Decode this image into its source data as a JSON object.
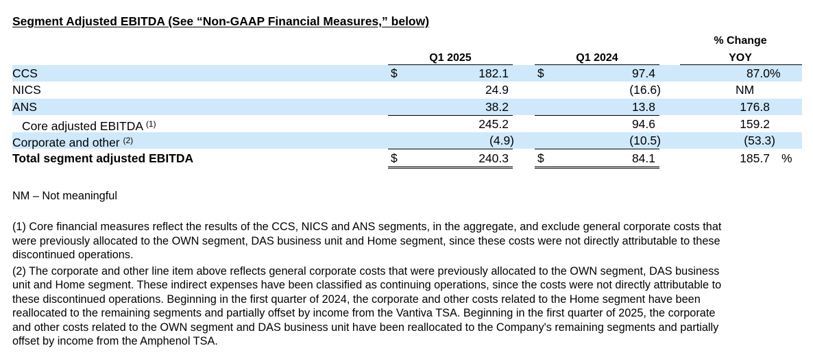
{
  "title": "Segment Adjusted EBITDA (See “Non-GAAP Financial Measures,” below)",
  "headers": {
    "col1": "Q1 2025",
    "col2": "Q1 2024",
    "col3_line1": "% Change",
    "col3_line2": "YOY"
  },
  "rows": [
    {
      "label": "CCS",
      "sup": "",
      "c1_dollar": "$",
      "c1": "182.1",
      "c2_dollar": "$",
      "c2": "97.4",
      "c3": "87.0",
      "c3_pct": "%"
    },
    {
      "label": "NICS",
      "sup": "",
      "c1_dollar": "",
      "c1": "24.9",
      "c2_dollar": "",
      "c2": "(16.6)",
      "c3": "NM",
      "c3_pct": ""
    },
    {
      "label": "ANS",
      "sup": "",
      "c1_dollar": "",
      "c1": "38.2",
      "c2_dollar": "",
      "c2": "13.8",
      "c3": "176.8",
      "c3_pct": ""
    },
    {
      "label": "Core adjusted EBITDA",
      "sup": "(1)",
      "c1_dollar": "",
      "c1": "245.2",
      "c2_dollar": "",
      "c2": "94.6",
      "c3": "159.2",
      "c3_pct": ""
    },
    {
      "label": "Corporate and other",
      "sup": "(2)",
      "c1_dollar": "",
      "c1": "(4.9)",
      "c2_dollar": "",
      "c2": "(10.5)",
      "c3": "(53.3)",
      "c3_pct": ""
    },
    {
      "label": "Total segment adjusted EBITDA",
      "sup": "",
      "c1_dollar": "$",
      "c1": "240.3",
      "c2_dollar": "$",
      "c2": "84.1",
      "c3": "185.7",
      "c3_pct": "%"
    }
  ],
  "nm_note": "NM – Not meaningful",
  "footnote1": [
    "(1) Core financial measures reflect the results of the CCS, NICS and ANS segments, in the aggregate, and exclude general corporate costs that",
    "were previously allocated to the OWN segment, DAS business unit and Home segment, since these costs were not directly attributable to these",
    "discontinued operations."
  ],
  "footnote2": [
    "(2) The corporate and other line item above reflects general corporate costs that were previously allocated to the OWN segment, DAS business",
    "unit and Home segment. These indirect expenses have been classified as continuing operations, since the costs were not directly attributable to",
    "these discontinued operations. Beginning in the first quarter of 2024, the corporate and other costs related to the Home segment have been",
    "reallocated to the remaining segments and partially offset by income from the Vantiva TSA. Beginning in the first quarter of 2025, the corporate",
    "and other costs related to the OWN segment and DAS business unit have been reallocated to the Company's remaining segments and partially",
    "offset by income from the Amphenol TSA."
  ]
}
